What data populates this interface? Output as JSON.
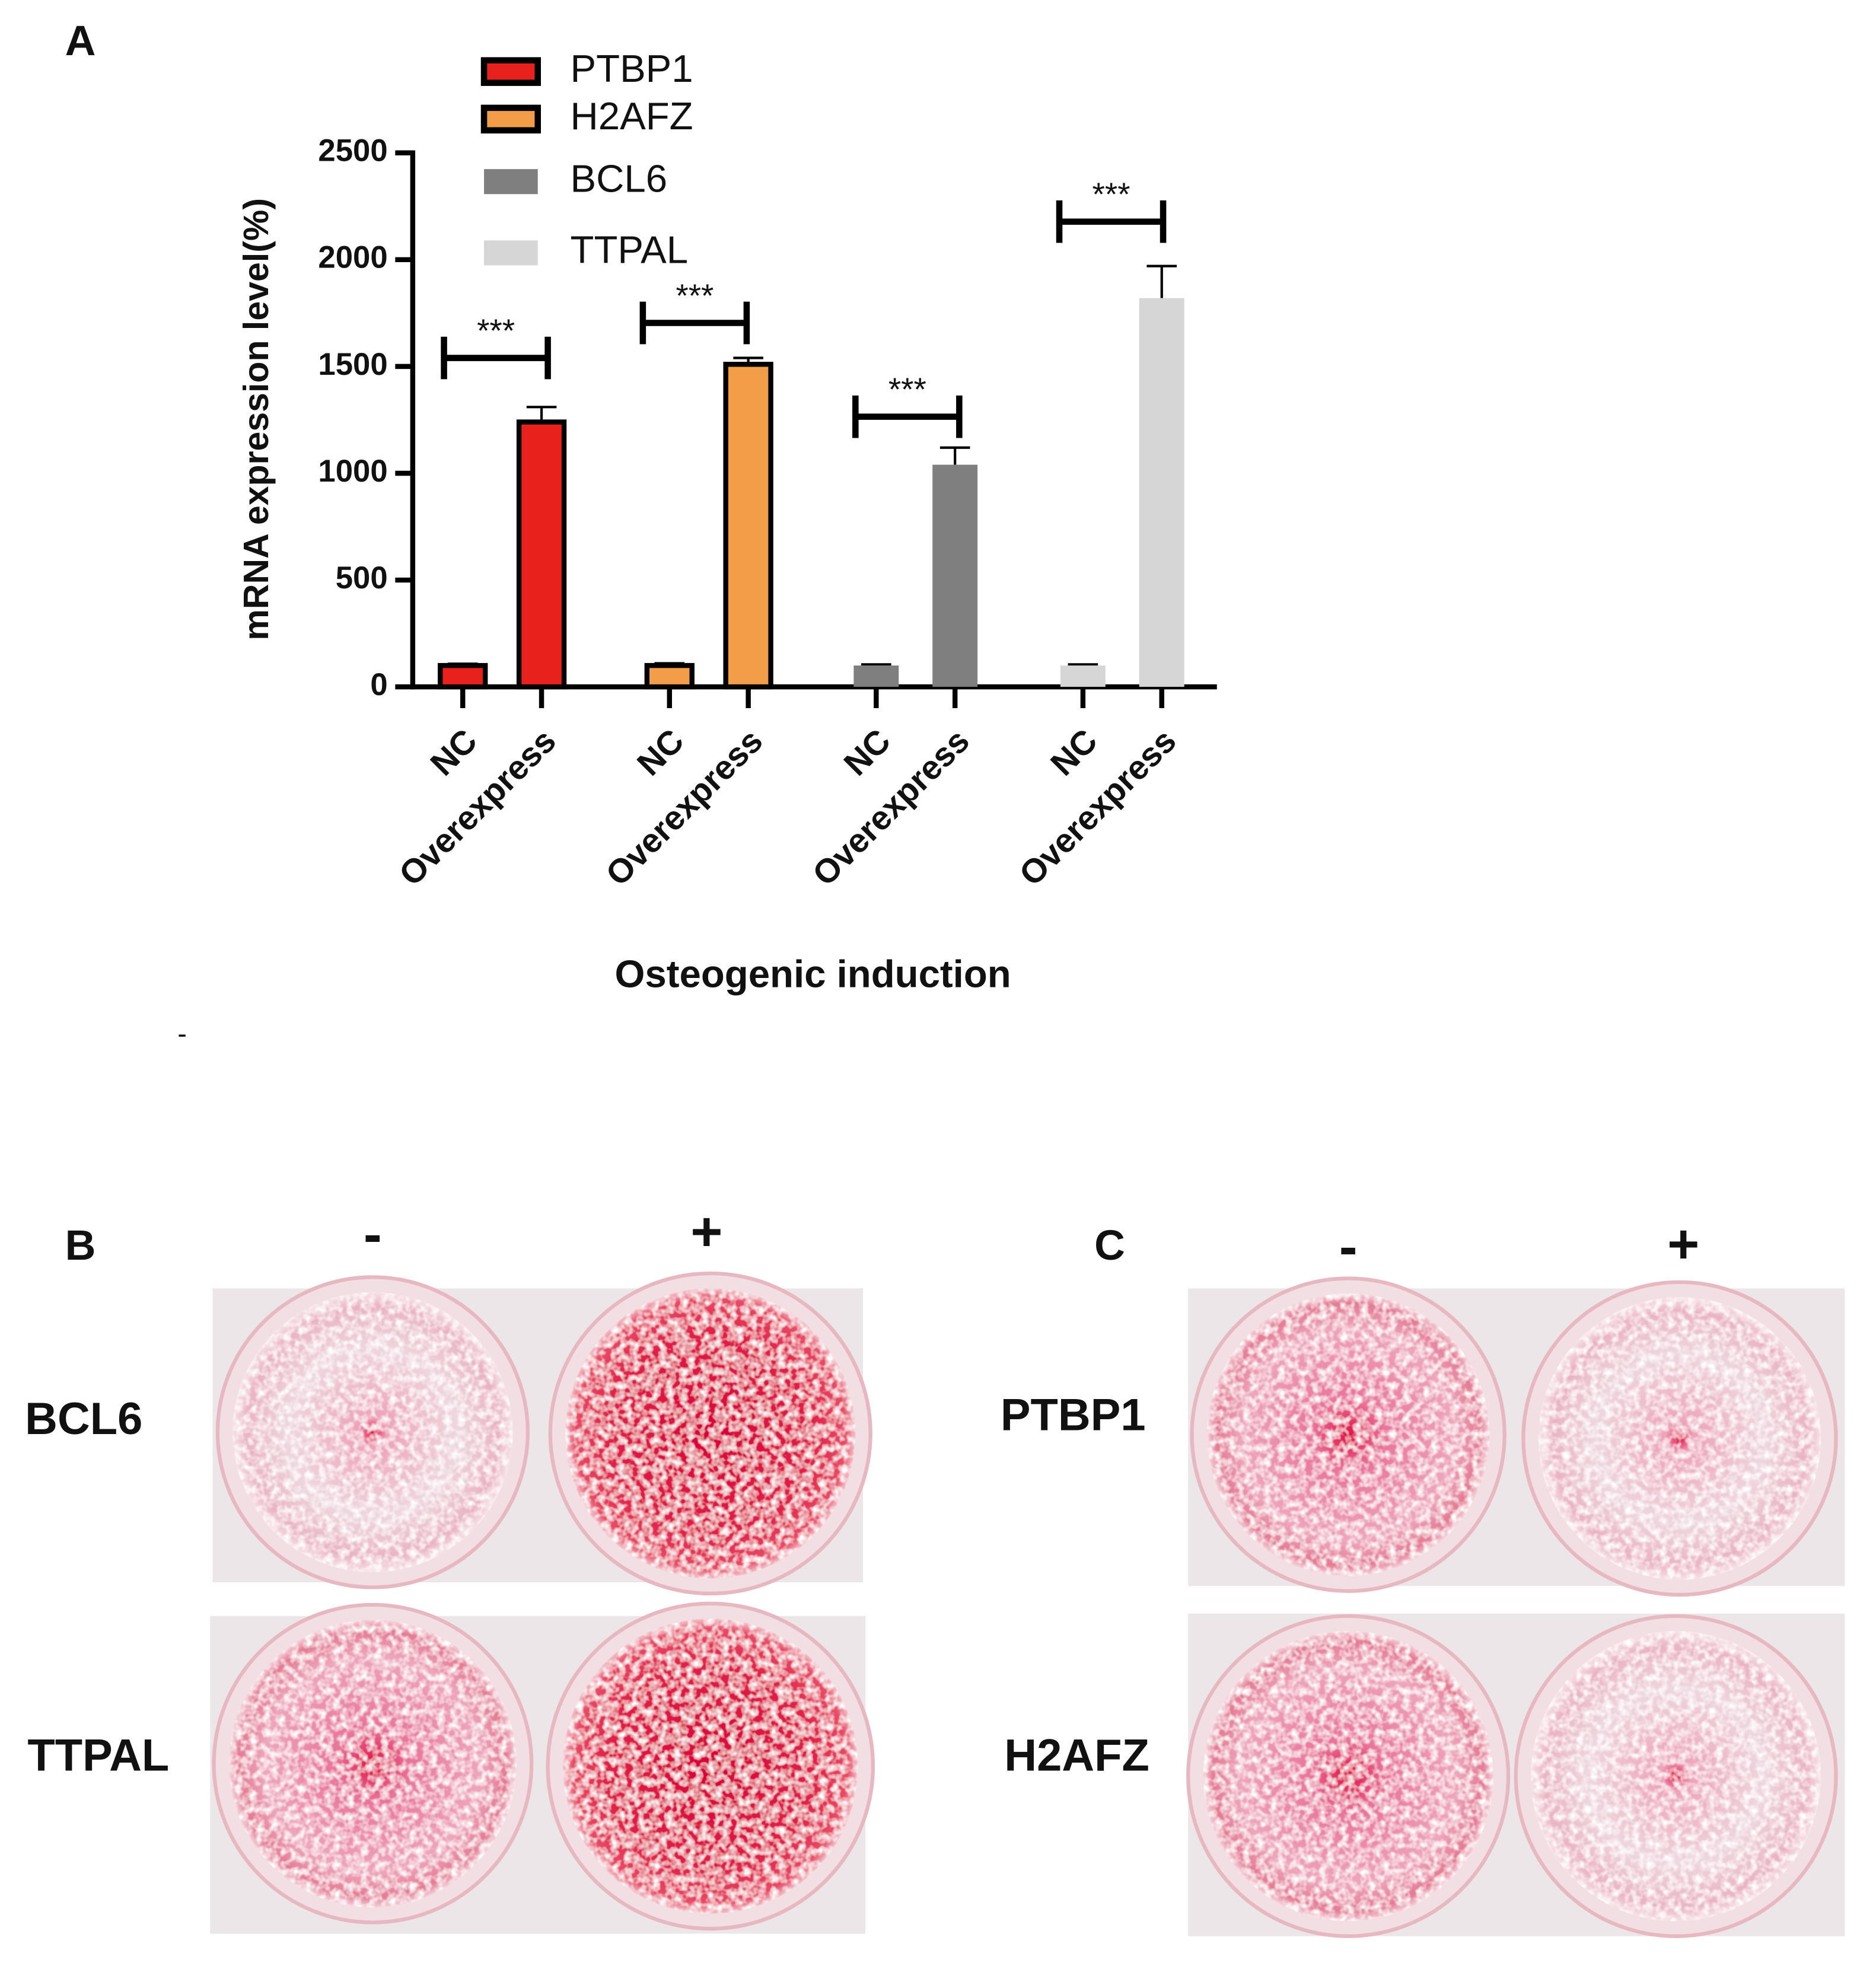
{
  "panel_labels": [
    "A",
    "B",
    "C"
  ],
  "dash": "-",
  "chart_data": {
    "type": "bar",
    "y_label": "mRNA expression level(%)",
    "x_label": "Osteogenic induction",
    "categories": [
      "NC",
      "Overexpress",
      "NC",
      "Overexpress",
      "NC",
      "Overexpress",
      "NC",
      "Overexpress"
    ],
    "series": [
      {
        "name": "PTBP1",
        "color": "#e8211d",
        "edgecolor": "#000000",
        "values": [
          100,
          1240,
          null,
          null,
          null,
          null,
          null,
          null
        ],
        "errors": [
          8,
          70,
          null,
          null,
          null,
          null,
          null,
          null
        ]
      },
      {
        "name": "H2AFZ",
        "color": "#f29d48",
        "edgecolor": "#000000",
        "values": [
          null,
          null,
          100,
          1510,
          null,
          null,
          null,
          null
        ],
        "errors": [
          null,
          null,
          10,
          30,
          null,
          null,
          null,
          null
        ]
      },
      {
        "name": "BCL6",
        "color": "#7f7f7f",
        "values": [
          null,
          null,
          null,
          null,
          100,
          1040,
          null,
          null
        ],
        "errors": [
          null,
          null,
          null,
          null,
          5,
          80,
          null,
          null
        ]
      },
      {
        "name": "TTPAL",
        "color": "#d6d6d6",
        "values": [
          null,
          null,
          null,
          null,
          null,
          null,
          100,
          1820
        ],
        "errors": [
          null,
          null,
          null,
          null,
          null,
          null,
          5,
          150
        ]
      }
    ],
    "ylim": [
      0,
      2500
    ],
    "yticks": [
      0,
      500,
      1000,
      1500,
      2000,
      2500
    ],
    "annotations": [
      "***",
      "***",
      "***",
      "***"
    ]
  },
  "plates_B": {
    "columns": [
      "-",
      "+"
    ],
    "rows": [
      "BCL6",
      "TTPAL"
    ]
  },
  "plates_C": {
    "columns": [
      "-",
      "+"
    ],
    "rows": [
      "PTBP1",
      "H2AFZ"
    ]
  }
}
